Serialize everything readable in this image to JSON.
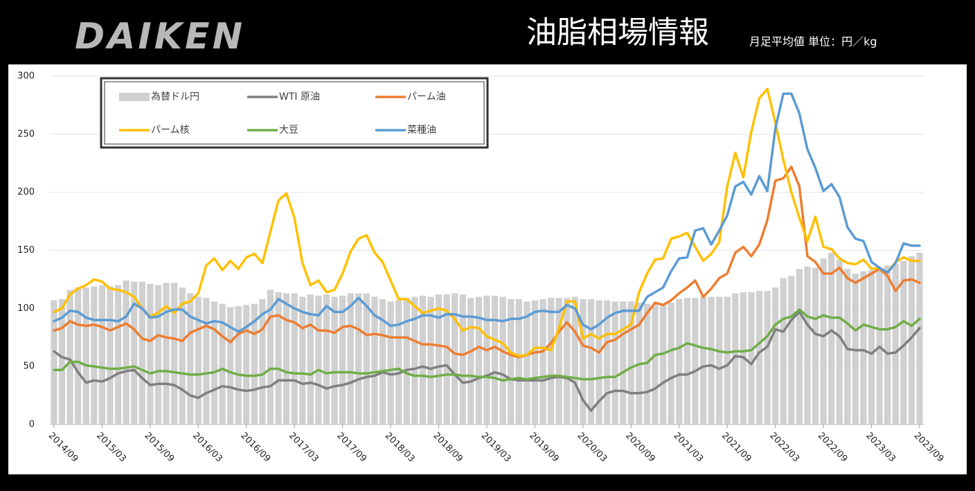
{
  "logo": "DAIKEN",
  "chart_data": {
    "type": "combo",
    "title": "油脂相場情報",
    "subtitle": "月足平均値 単位：円／kg",
    "categories": [
      "2014/09",
      null,
      null,
      null,
      null,
      null,
      "2015/03",
      null,
      null,
      null,
      null,
      null,
      "2015/09",
      null,
      null,
      null,
      null,
      null,
      "2016/03",
      null,
      null,
      null,
      null,
      null,
      "2016/09",
      null,
      null,
      null,
      null,
      null,
      "2017/03",
      null,
      null,
      null,
      null,
      null,
      "2017/09",
      null,
      null,
      null,
      null,
      null,
      "2018/03",
      null,
      null,
      null,
      null,
      null,
      "2018/09",
      null,
      null,
      null,
      null,
      null,
      "2019/03",
      null,
      null,
      null,
      null,
      null,
      "2019/09",
      null,
      null,
      null,
      null,
      null,
      "2020/03",
      null,
      null,
      null,
      null,
      null,
      "2020/09",
      null,
      null,
      null,
      null,
      null,
      "2021/03",
      null,
      null,
      null,
      null,
      null,
      "2021/09",
      null,
      null,
      null,
      null,
      null,
      "2022/03",
      null,
      null,
      null,
      null,
      null,
      "2022/09",
      null,
      null,
      null,
      null,
      null,
      "2023/03",
      null,
      null,
      null,
      null,
      null,
      "2023/09"
    ],
    "series": [
      {
        "name": "為替ドル円",
        "type": "bar",
        "color": "#d0d0d0",
        "values": [
          107,
          108,
          116,
          118,
          118,
          119,
          120,
          119,
          120,
          124,
          123,
          123,
          121,
          120,
          122,
          122,
          118,
          113,
          110,
          109,
          106,
          104,
          101,
          102,
          103,
          104,
          108,
          116,
          114,
          113,
          113,
          110,
          112,
          111,
          112,
          110,
          111,
          113,
          113,
          113,
          110,
          108,
          106,
          107,
          109,
          110,
          111,
          110,
          112,
          112,
          113,
          112,
          109,
          110,
          111,
          111,
          110,
          108,
          108,
          106,
          107,
          108,
          109,
          109,
          109,
          110,
          108,
          108,
          107,
          107,
          106,
          106,
          106,
          105,
          104,
          104,
          104,
          105,
          108,
          109,
          109,
          110,
          110,
          110,
          110,
          113,
          114,
          114,
          115,
          115,
          118,
          126,
          128,
          134,
          136,
          135,
          143,
          148,
          142,
          134,
          130,
          132,
          133,
          135,
          137,
          138,
          141,
          145,
          148
        ]
      },
      {
        "name": "WTI 原油",
        "type": "line",
        "color": "#7f7f7f",
        "values": [
          63,
          58,
          56,
          45,
          36,
          38,
          37,
          40,
          44,
          46,
          47,
          40,
          34,
          35,
          35,
          34,
          30,
          25,
          23,
          27,
          30,
          33,
          32,
          30,
          29,
          30,
          32,
          33,
          38,
          38,
          38,
          35,
          36,
          34,
          31,
          33,
          34,
          36,
          39,
          41,
          42,
          45,
          43,
          44,
          47,
          48,
          50,
          48,
          50,
          51,
          43,
          36,
          37,
          40,
          42,
          45,
          43,
          39,
          38,
          38,
          38,
          38,
          40,
          41,
          40,
          36,
          21,
          12,
          20,
          27,
          29,
          29,
          27,
          27,
          28,
          31,
          36,
          40,
          43,
          43,
          46,
          50,
          51,
          48,
          51,
          59,
          58,
          52,
          62,
          67,
          82,
          80,
          90,
          97,
          86,
          78,
          76,
          81,
          76,
          65,
          64,
          64,
          61,
          67,
          61,
          62,
          68,
          75,
          83
        ]
      },
      {
        "name": "パーム油",
        "type": "line",
        "color": "#ed7d31",
        "values": [
          81,
          83,
          89,
          86,
          85,
          86,
          84,
          81,
          84,
          87,
          82,
          74,
          72,
          77,
          75,
          74,
          72,
          79,
          82,
          85,
          82,
          76,
          71,
          78,
          81,
          78,
          82,
          93,
          94,
          90,
          88,
          83,
          86,
          81,
          81,
          79,
          84,
          85,
          82,
          77,
          78,
          77,
          75,
          75,
          75,
          72,
          69,
          69,
          68,
          67,
          61,
          60,
          63,
          67,
          64,
          67,
          63,
          60,
          58,
          60,
          62,
          63,
          70,
          80,
          88,
          80,
          68,
          66,
          62,
          71,
          73,
          78,
          82,
          86,
          96,
          105,
          103,
          107,
          113,
          118,
          124,
          110,
          117,
          126,
          130,
          148,
          153,
          145,
          155,
          176,
          210,
          212,
          222,
          205,
          145,
          140,
          130,
          130,
          135,
          126,
          122,
          126,
          130,
          134,
          128,
          115,
          124,
          125,
          122
        ]
      },
      {
        "name": "パーム核",
        "type": "line",
        "color": "#ffc000",
        "values": [
          97,
          100,
          112,
          117,
          120,
          125,
          123,
          117,
          116,
          114,
          110,
          100,
          93,
          96,
          102,
          96,
          104,
          106,
          113,
          137,
          143,
          133,
          141,
          134,
          144,
          147,
          139,
          166,
          193,
          199,
          178,
          139,
          120,
          124,
          114,
          116,
          130,
          149,
          160,
          163,
          148,
          140,
          124,
          108,
          108,
          102,
          96,
          98,
          100,
          98,
          91,
          81,
          84,
          83,
          76,
          73,
          70,
          62,
          59,
          60,
          66,
          66,
          64,
          83,
          106,
          106,
          74,
          78,
          74,
          78,
          78,
          82,
          86,
          114,
          130,
          142,
          143,
          160,
          162,
          165,
          153,
          141,
          147,
          157,
          205,
          234,
          213,
          252,
          281,
          289,
          260,
          228,
          200,
          178,
          158,
          179,
          153,
          151,
          143,
          139,
          138,
          142,
          134,
          135,
          131,
          140,
          144,
          141,
          141
        ]
      },
      {
        "name": "大豆",
        "type": "line",
        "color": "#70ad47",
        "values": [
          47,
          47,
          54,
          54,
          51,
          50,
          49,
          48,
          48,
          49,
          50,
          47,
          44,
          46,
          46,
          45,
          44,
          43,
          43,
          44,
          45,
          48,
          45,
          43,
          42,
          42,
          43,
          48,
          48,
          45,
          44,
          44,
          43,
          47,
          44,
          45,
          45,
          45,
          44,
          44,
          45,
          46,
          47,
          48,
          44,
          42,
          42,
          41,
          42,
          43,
          43,
          42,
          42,
          41,
          41,
          40,
          38,
          39,
          40,
          39,
          40,
          41,
          42,
          42,
          41,
          40,
          39,
          39,
          40,
          41,
          41,
          45,
          49,
          52,
          53,
          60,
          61,
          64,
          66,
          70,
          68,
          66,
          65,
          63,
          62,
          63,
          63,
          64,
          70,
          76,
          86,
          91,
          93,
          99,
          93,
          91,
          94,
          92,
          92,
          87,
          81,
          86,
          84,
          82,
          82,
          84,
          89,
          85,
          91
        ]
      },
      {
        "name": "菜種油",
        "type": "line",
        "color": "#5b9bd5",
        "values": [
          89,
          92,
          98,
          97,
          92,
          90,
          90,
          90,
          89,
          93,
          104,
          100,
          92,
          93,
          97,
          99,
          99,
          93,
          90,
          87,
          89,
          88,
          84,
          80,
          84,
          89,
          95,
          99,
          108,
          104,
          100,
          97,
          95,
          94,
          102,
          97,
          97,
          102,
          109,
          102,
          94,
          90,
          85,
          86,
          89,
          91,
          94,
          94,
          92,
          95,
          95,
          93,
          93,
          92,
          90,
          90,
          89,
          91,
          91,
          93,
          97,
          98,
          97,
          97,
          103,
          100,
          86,
          82,
          86,
          92,
          96,
          98,
          98,
          98,
          110,
          114,
          118,
          132,
          143,
          144,
          167,
          169,
          155,
          167,
          180,
          205,
          209,
          198,
          214,
          201,
          255,
          285,
          285,
          268,
          237,
          221,
          201,
          207,
          196,
          170,
          160,
          158,
          140,
          135,
          131,
          139,
          156,
          154,
          154
        ]
      }
    ],
    "ylim": [
      0,
      300
    ],
    "yticks": [
      0,
      50,
      100,
      150,
      200,
      250,
      300
    ],
    "grid": true
  }
}
